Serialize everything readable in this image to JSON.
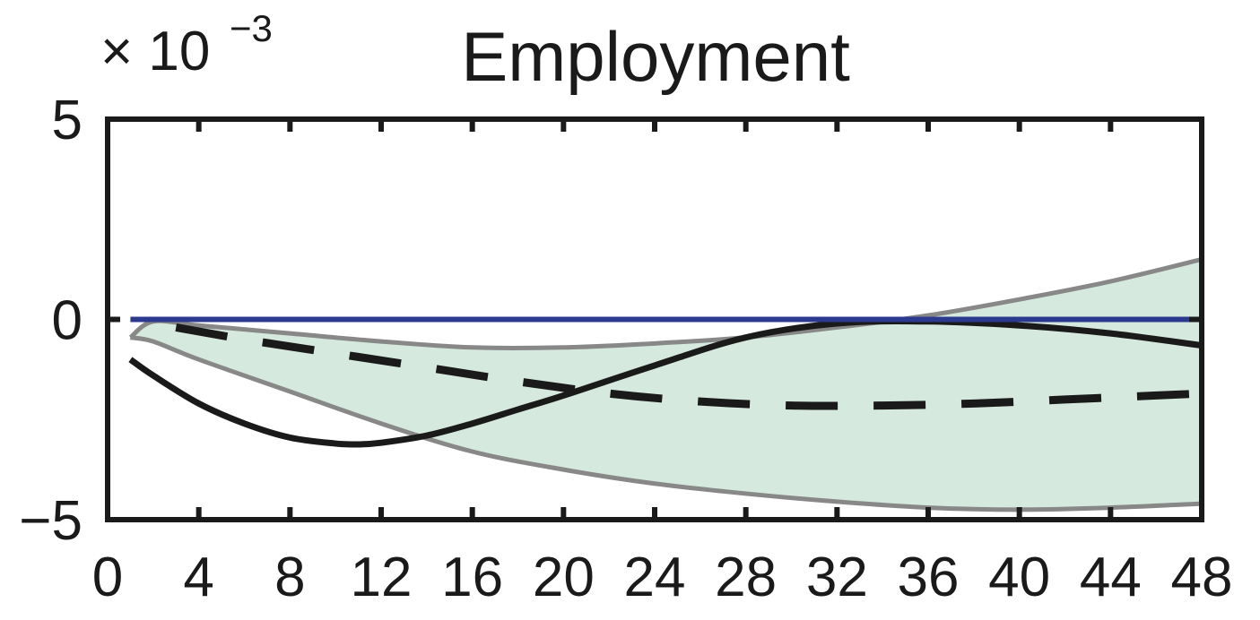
{
  "chart_data": {
    "type": "line",
    "title": "Employment",
    "axis_multiplier": {
      "base": "× 10",
      "exponent": "−3"
    },
    "xlim": [
      0,
      48
    ],
    "ylim": [
      -5,
      5
    ],
    "y_scale_factor": 0.001,
    "x_ticks": [
      0,
      4,
      8,
      12,
      16,
      20,
      24,
      28,
      32,
      36,
      40,
      44,
      48
    ],
    "x_tick_labels": [
      "0",
      "4",
      "8",
      "12",
      "16",
      "20",
      "24",
      "28",
      "32",
      "36",
      "40",
      "44",
      "48"
    ],
    "y_ticks": [
      -5,
      0,
      5
    ],
    "y_tick_labels": [
      "−5",
      "0",
      "5"
    ],
    "grid": false,
    "colors": {
      "band_fill": "#d6e9de",
      "band_edge": "#888888",
      "zero_line": "#2b3a8f",
      "solid_line": "#1a1a1a",
      "dashed_line": "#1a1a1a",
      "axes": "#1a1a1a"
    },
    "confidence_band": {
      "x": [
        1,
        2,
        4,
        8,
        12,
        16,
        20,
        24,
        28,
        32,
        36,
        40,
        44,
        48
      ],
      "upper": [
        -0.45,
        -0.05,
        -0.15,
        -0.35,
        -0.55,
        -0.7,
        -0.7,
        -0.6,
        -0.45,
        -0.2,
        0.1,
        0.5,
        0.95,
        1.5
      ],
      "lower": [
        -0.45,
        -0.55,
        -1.0,
        -1.8,
        -2.6,
        -3.3,
        -3.75,
        -4.1,
        -4.35,
        -4.55,
        -4.7,
        -4.75,
        -4.7,
        -4.6
      ]
    },
    "series": [
      {
        "style": "solid",
        "x": [
          1,
          2,
          4,
          6,
          8,
          10,
          11,
          12,
          14,
          16,
          18,
          20,
          24,
          28,
          32,
          36,
          40,
          44,
          48
        ],
        "values": [
          -1.0,
          -1.4,
          -2.1,
          -2.6,
          -2.95,
          -3.1,
          -3.12,
          -3.08,
          -2.9,
          -2.6,
          -2.25,
          -1.9,
          -1.15,
          -0.45,
          -0.1,
          -0.05,
          -0.15,
          -0.35,
          -0.65
        ]
      },
      {
        "style": "dashed",
        "x": [
          3,
          6,
          10,
          14,
          18,
          22,
          26,
          30,
          34,
          38,
          42,
          46,
          48
        ],
        "values": [
          -0.2,
          -0.5,
          -0.85,
          -1.2,
          -1.55,
          -1.85,
          -2.05,
          -2.15,
          -2.15,
          -2.1,
          -2.0,
          -1.9,
          -1.85
        ]
      },
      {
        "style": "zero",
        "x": [
          1,
          48
        ],
        "values": [
          0,
          0
        ]
      }
    ]
  }
}
